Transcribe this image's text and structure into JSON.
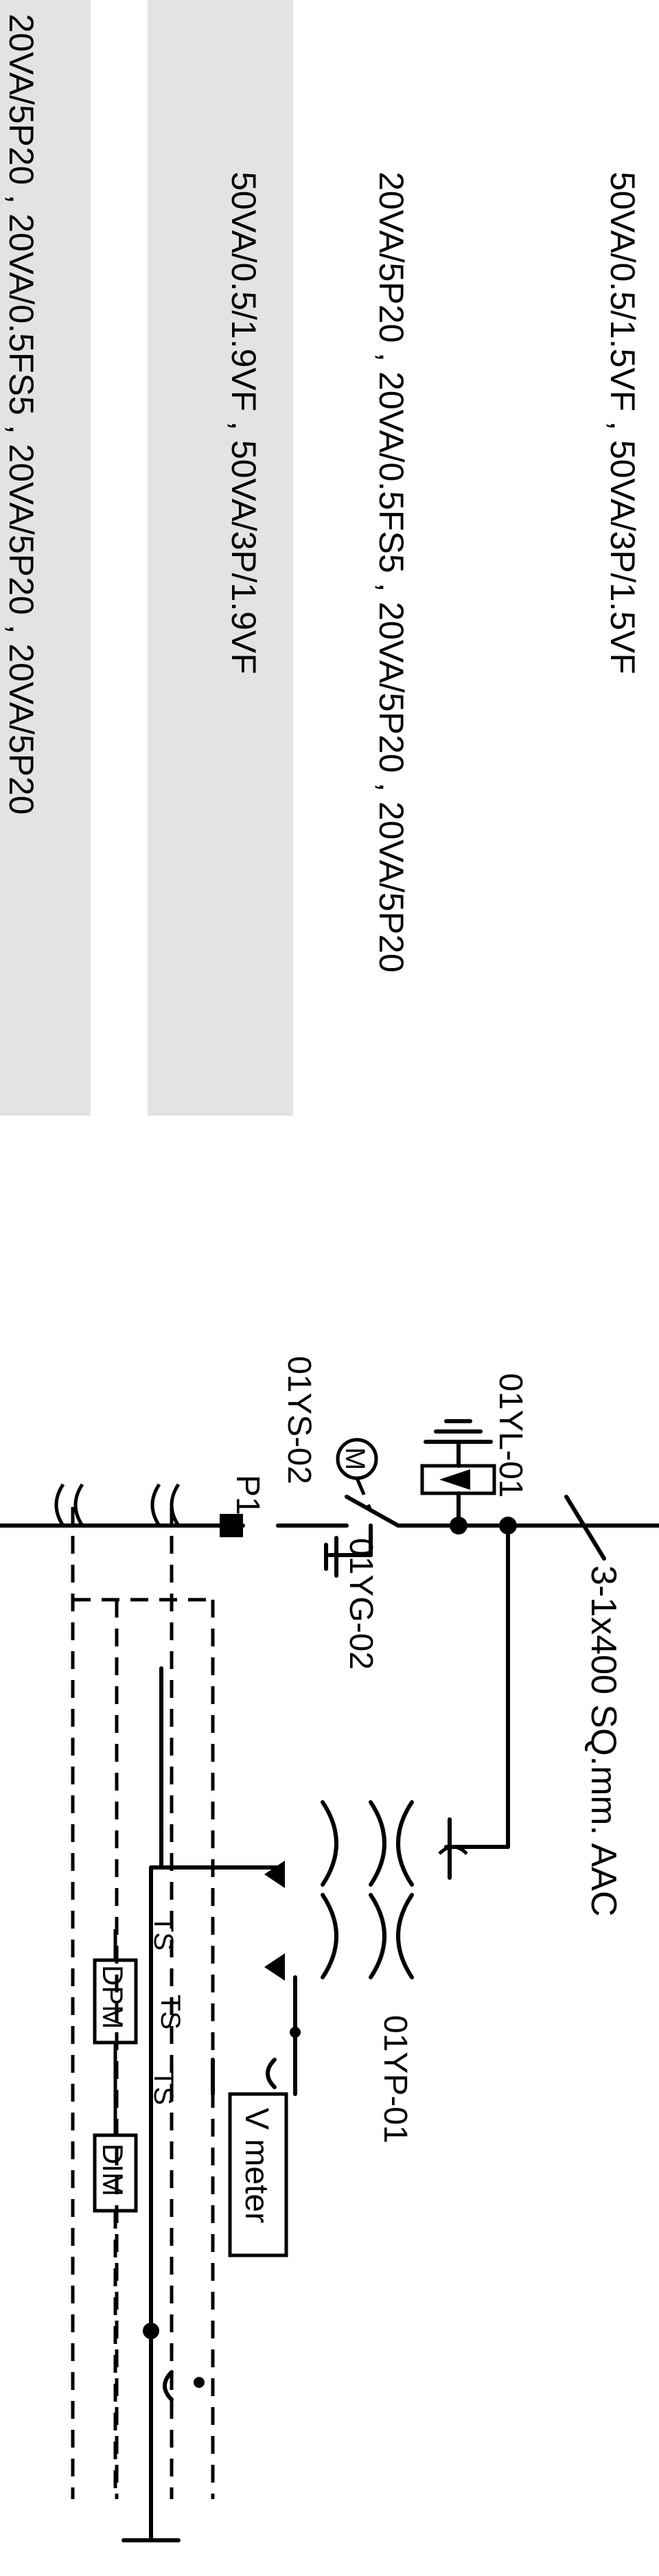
{
  "ct_ratings": {
    "row1": "50VA/0.5/1.5VF , 50VA/3P/1.5VF",
    "row2": "20VA/5P20 , 20VA/0.5FS5 , 20VA/5P20 , 20VA/5P20",
    "row3": "50VA/0.5/1.9VF , 50VA/3P/1.9VF",
    "row4": "20VA/5P20 , 20VA/0.5FS5 , 20VA/5P20 , 20VA/5P20"
  },
  "labels": {
    "cable": "3-1x400 SQ.mm. AAC",
    "lightning_arrester": "01YL-01",
    "switch_earth": "01YG-02",
    "motor_switch": "01YS-02",
    "motor": "M",
    "panel": "P1",
    "vt": "01YP-01",
    "v_meter": "V meter",
    "dpm": "DPM",
    "dim": "DIM",
    "ts1": "TS",
    "ts2": "TS",
    "ts3": "TS"
  },
  "colors": {
    "highlight_band": "#e3e3e3",
    "line": "#000000"
  }
}
